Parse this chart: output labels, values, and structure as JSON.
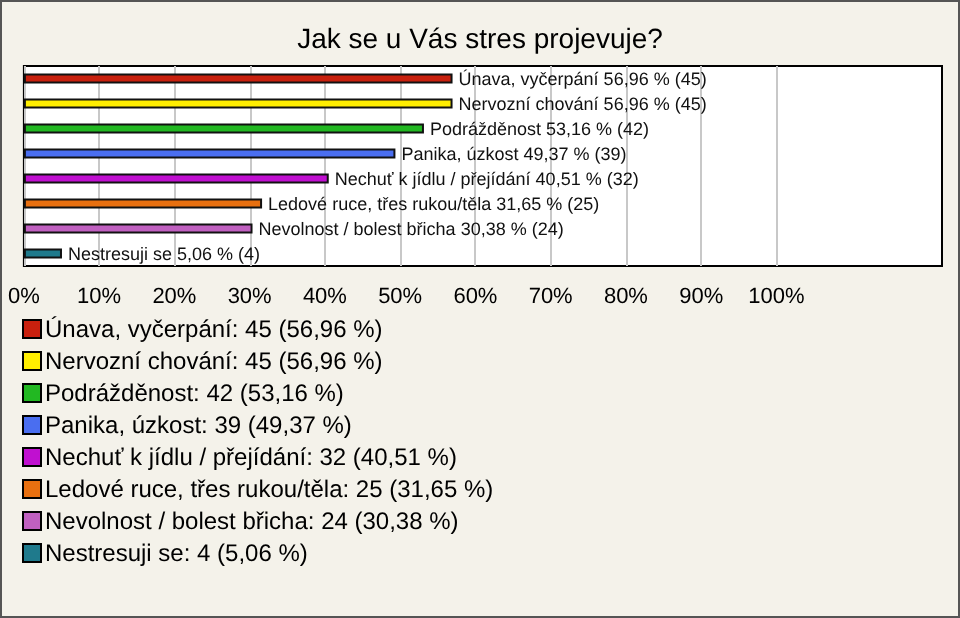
{
  "chart_data": {
    "type": "bar",
    "orientation": "horizontal",
    "stacked": true,
    "title": "Jak se u Vás stres projevuje?",
    "categories": [
      null,
      null,
      null,
      null,
      null,
      null,
      null,
      null
    ],
    "series": [
      {
        "name": "Únava, vyčerpání: 45 (56,96 %)",
        "color": "#c8200e",
        "values": [
          56.96,
          null,
          null,
          null,
          null,
          null,
          null,
          null
        ],
        "value_labels": [
          "Únava, vyčerpání 56,96 % (45)",
          null,
          null,
          null,
          null,
          null,
          null,
          null
        ]
      },
      {
        "name": "Nervozní chování: 45 (56,96 %)",
        "color": "#ffee00",
        "values": [
          null,
          56.96,
          null,
          null,
          null,
          null,
          null,
          null
        ],
        "value_labels": [
          null,
          "Nervozní chování 56,96 % (45)",
          null,
          null,
          null,
          null,
          null,
          null
        ]
      },
      {
        "name": "Podrážděnost: 42 (53,16 %)",
        "color": "#22b822",
        "values": [
          null,
          null,
          53.16,
          null,
          null,
          null,
          null,
          null
        ],
        "value_labels": [
          null,
          null,
          "Podrážděnost 53,16 % (42)",
          null,
          null,
          null,
          null,
          null
        ]
      },
      {
        "name": "Panika, úzkost: 39 (49,37 %)",
        "color": "#4a6ef0",
        "values": [
          null,
          null,
          null,
          49.37,
          null,
          null,
          null,
          null
        ],
        "value_labels": [
          null,
          null,
          null,
          "Panika, úzkost 49,37 % (39)",
          null,
          null,
          null,
          null
        ]
      },
      {
        "name": "Nechuť k jídlu / přejídání: 32 (40,51 %)",
        "color": "#c010d0",
        "values": [
          null,
          null,
          null,
          null,
          40.51,
          null,
          null,
          null
        ],
        "value_labels": [
          null,
          null,
          null,
          null,
          "Nechuť k jídlu / přejídání 40,51 % (32)",
          null,
          null,
          null
        ]
      },
      {
        "name": "Ledové ruce, třes rukou/těla: 25 (31,65 %)",
        "color": "#e87010",
        "values": [
          null,
          null,
          null,
          null,
          null,
          31.65,
          null,
          null
        ],
        "value_labels": [
          null,
          null,
          null,
          null,
          null,
          "Ledové ruce, třes rukou/těla 31,65 % (25)",
          null,
          null
        ]
      },
      {
        "name": "Nevolnost / bolest břicha: 24 (30,38 %)",
        "color": "#c060c0",
        "values": [
          null,
          null,
          null,
          null,
          null,
          null,
          30.38,
          null
        ],
        "value_labels": [
          null,
          null,
          null,
          null,
          null,
          null,
          "Nevolnost / bolest břicha 30,38 % (24)",
          null
        ]
      },
      {
        "name": "Nestresuji se: 4 (5,06 %)",
        "color": "#1f7a8c",
        "values": [
          null,
          null,
          null,
          null,
          null,
          null,
          null,
          5.06
        ],
        "value_labels": [
          null,
          null,
          null,
          null,
          null,
          null,
          null,
          "Nestresuji se 5,06 % (4)"
        ]
      }
    ],
    "xlim": [
      0,
      122
    ],
    "xticks": [
      {
        "value": 0,
        "label": "0%"
      },
      {
        "value": 10,
        "label": "10%"
      },
      {
        "value": 20,
        "label": "20%"
      },
      {
        "value": 30,
        "label": "30%"
      },
      {
        "value": 40,
        "label": "40%"
      },
      {
        "value": 50,
        "label": "50%"
      },
      {
        "value": 60,
        "label": "60%"
      },
      {
        "value": 70,
        "label": "70%"
      },
      {
        "value": 80,
        "label": "80%"
      },
      {
        "value": 90,
        "label": "90%"
      },
      {
        "value": 100,
        "label": "100%"
      }
    ],
    "tick_labels": "x",
    "grid": "x",
    "legend": "bottom"
  }
}
